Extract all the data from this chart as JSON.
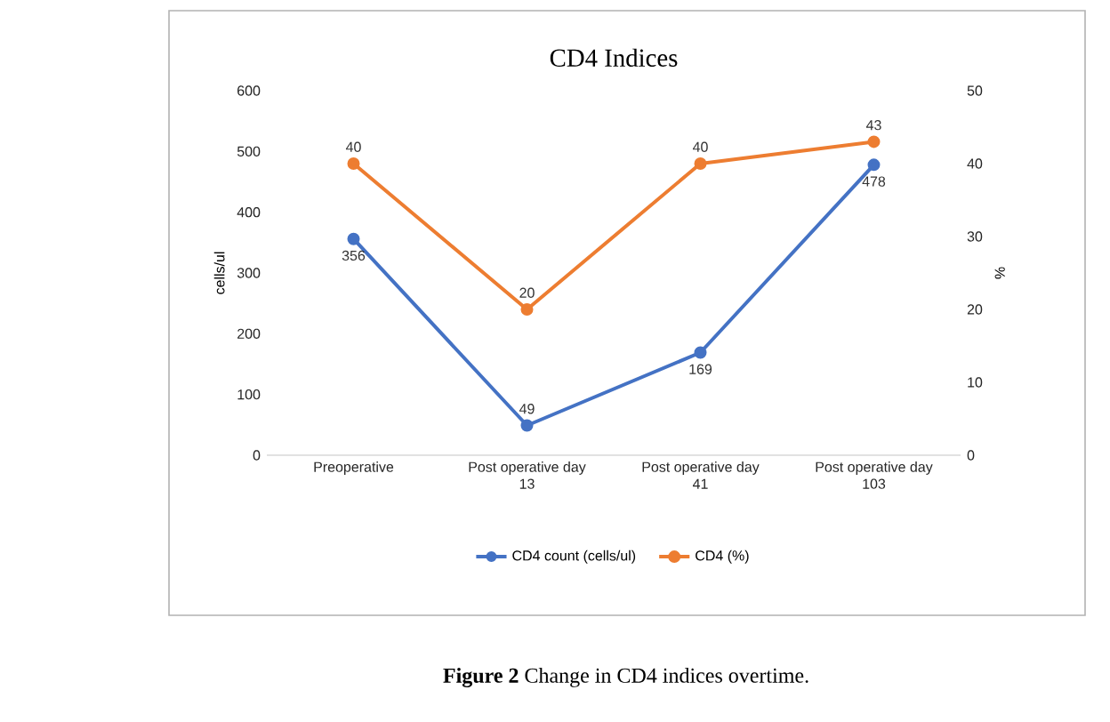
{
  "chart_data": {
    "type": "line",
    "title": "CD4 Indices",
    "ylabel": "cells/ul",
    "y2label": "%",
    "categories": [
      "Preoperative",
      "Post operative day 13",
      "Post operative day 41",
      "Post operative day 103"
    ],
    "series": [
      {
        "name": "CD4 count (cells/ul)",
        "color": "#4472c4",
        "values": [
          356,
          49,
          169,
          478
        ]
      },
      {
        "name": "CD4 (%)",
        "color": "#ed7d31",
        "values": [
          40,
          20,
          40,
          43
        ],
        "axis": "y2"
      }
    ],
    "ylim": [
      0,
      600
    ],
    "yticks": [
      0,
      100,
      200,
      300,
      400,
      500,
      600
    ],
    "y2lim": [
      0,
      50
    ],
    "y2ticks": [
      0,
      10,
      20,
      30,
      40,
      50
    ],
    "marker": "circle",
    "legend": "bottom",
    "grid": false,
    "data_labels": true,
    "annotations": [
      "**Figure 2** Change in CD4 indices overtime."
    ]
  }
}
